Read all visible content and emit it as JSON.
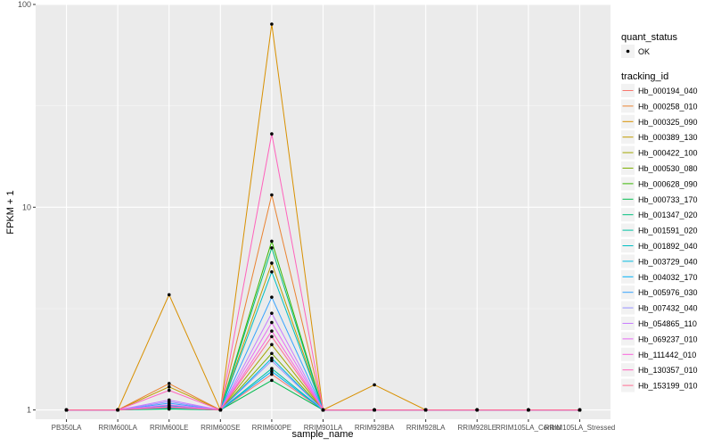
{
  "chart_data": {
    "type": "line",
    "title": "",
    "xlabel": "sample_name",
    "ylabel": "FPKM + 1",
    "y_scale": "log10",
    "ylim": [
      0.9,
      100
    ],
    "y_ticks": [
      1,
      10,
      100
    ],
    "y_tick_labels": [
      "1",
      "10",
      "100"
    ],
    "grid": true,
    "legend_position": "right",
    "categories": [
      "PB350LA",
      "RRIM600LA",
      "RRIM600LE",
      "RRIM600SE",
      "RRIM600PE",
      "RRIM901LA",
      "RRIM928BA",
      "RRIM928LA",
      "RRIM928LE",
      "RRIM105LA_Control",
      "RRIM105LA_Stressed"
    ],
    "point_legend": {
      "title": "quant_status",
      "items": [
        "OK"
      ]
    },
    "series_legend_title": "tracking_id",
    "series": [
      {
        "name": "Hb_000194_040",
        "color": "#F8766D",
        "values": [
          1,
          1,
          1.05,
          1,
          1.5,
          1,
          1,
          1,
          1,
          1,
          1
        ]
      },
      {
        "name": "Hb_000258_010",
        "color": "#EA8331",
        "values": [
          1,
          1,
          1.35,
          1,
          11.5,
          1,
          1,
          1,
          1,
          1,
          1
        ]
      },
      {
        "name": "Hb_000325_090",
        "color": "#D89000",
        "values": [
          1,
          1,
          3.7,
          1,
          80,
          1,
          1.33,
          1,
          1,
          1,
          1
        ]
      },
      {
        "name": "Hb_000389_130",
        "color": "#C09B00",
        "values": [
          1,
          1,
          1.3,
          1,
          5.3,
          1,
          1,
          1,
          1,
          1,
          1
        ]
      },
      {
        "name": "Hb_000422_100",
        "color": "#A3A500",
        "values": [
          1,
          1,
          1.03,
          1,
          2.1,
          1,
          1,
          1,
          1,
          1,
          1
        ]
      },
      {
        "name": "Hb_000530_080",
        "color": "#7CAE00",
        "values": [
          1,
          1,
          1.02,
          1,
          1.9,
          1,
          1,
          1,
          1,
          1,
          1
        ]
      },
      {
        "name": "Hb_000628_090",
        "color": "#39B600",
        "values": [
          1,
          1,
          1.04,
          1,
          6.8,
          1,
          1,
          1,
          1,
          1,
          1
        ]
      },
      {
        "name": "Hb_000733_170",
        "color": "#00BB4E",
        "values": [
          1,
          1,
          1.01,
          1,
          1.4,
          1,
          1,
          1,
          1,
          1,
          1
        ]
      },
      {
        "name": "Hb_001347_020",
        "color": "#00BF7D",
        "values": [
          1,
          1,
          1.02,
          1,
          6.3,
          1,
          1,
          1,
          1,
          1,
          1
        ]
      },
      {
        "name": "Hb_001591_020",
        "color": "#00C1A3",
        "values": [
          1,
          1,
          1.03,
          1,
          1.6,
          1,
          1,
          1,
          1,
          1,
          1
        ]
      },
      {
        "name": "Hb_001892_040",
        "color": "#00BFC4",
        "values": [
          1,
          1,
          1.02,
          1,
          4.8,
          1,
          1,
          1,
          1,
          1,
          1
        ]
      },
      {
        "name": "Hb_003729_040",
        "color": "#00BAE0",
        "values": [
          1,
          1,
          1.03,
          1,
          1.8,
          1,
          1,
          1,
          1,
          1,
          1
        ]
      },
      {
        "name": "Hb_004032_170",
        "color": "#00B0F6",
        "values": [
          1,
          1,
          1.05,
          1,
          1.55,
          1,
          1,
          1,
          1,
          1,
          1
        ]
      },
      {
        "name": "Hb_005976_030",
        "color": "#35A2FF",
        "values": [
          1,
          1,
          1.08,
          1,
          3.6,
          1,
          1,
          1,
          1,
          1,
          1
        ]
      },
      {
        "name": "Hb_007432_040",
        "color": "#9590FF",
        "values": [
          1,
          1,
          1.1,
          1,
          1.75,
          1,
          1,
          1,
          1,
          1,
          1
        ]
      },
      {
        "name": "Hb_054865_110",
        "color": "#C77CFF",
        "values": [
          1,
          1,
          1.12,
          1,
          3.0,
          1,
          1,
          1,
          1,
          1,
          1
        ]
      },
      {
        "name": "Hb_069237_010",
        "color": "#E76BF3",
        "values": [
          1,
          1,
          1.06,
          1,
          2.7,
          1,
          1,
          1,
          1,
          1,
          1
        ]
      },
      {
        "name": "Hb_111442_010",
        "color": "#FA62DB",
        "values": [
          1,
          1,
          1.04,
          1,
          2.45,
          1,
          1,
          1,
          1,
          1,
          1
        ]
      },
      {
        "name": "Hb_130357_010",
        "color": "#FF62BC",
        "values": [
          1,
          1,
          1.25,
          1,
          23,
          1,
          1,
          1,
          1,
          1,
          1
        ]
      },
      {
        "name": "Hb_153199_010",
        "color": "#FF6C91",
        "values": [
          1,
          1,
          1.03,
          1,
          2.3,
          1,
          1,
          1,
          1,
          1,
          1
        ]
      }
    ]
  }
}
